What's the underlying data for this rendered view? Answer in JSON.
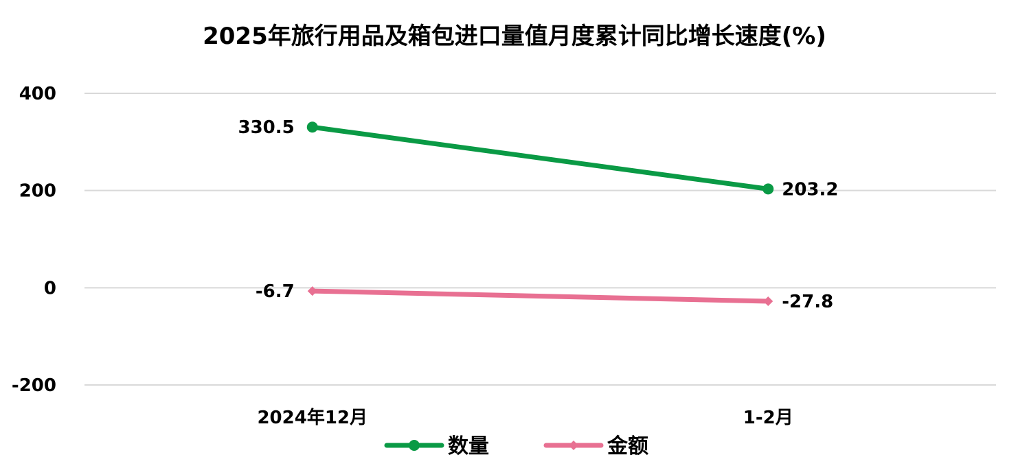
{
  "chart_data": {
    "type": "line",
    "title": "2025年旅行用品及箱包进口量值月度累计同比增长速度(%)",
    "categories": [
      "2024年12月",
      "1-2月"
    ],
    "series": [
      {
        "name": "数量",
        "values": [
          330.5,
          203.2
        ],
        "labels": [
          "330.5",
          "203.2"
        ],
        "color": "#0a9a45",
        "marker": "circle"
      },
      {
        "name": "金额",
        "values": [
          -6.7,
          -27.8
        ],
        "labels": [
          "-6.7",
          "-27.8"
        ],
        "color": "#e87092",
        "marker": "diamond"
      }
    ],
    "ylim": [
      -200,
      400
    ],
    "yticks": [
      400,
      200,
      0,
      -200
    ],
    "ytick_labels": [
      "400",
      "200",
      "0",
      "-200"
    ],
    "grid": true,
    "legend_position": "bottom"
  }
}
